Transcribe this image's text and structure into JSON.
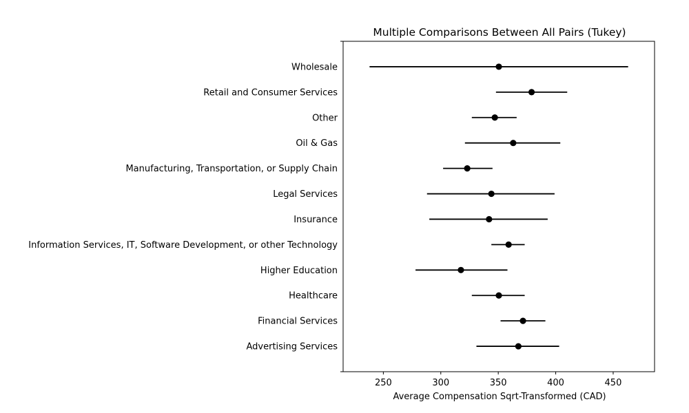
{
  "chart_data": {
    "type": "scatter",
    "title": "Multiple Comparisons Between All Pairs (Tukey)",
    "xlabel": "Average Compensation Sqrt-Transformed (CAD)",
    "ylabel": "",
    "xlim": [
      215,
      486
    ],
    "xticks": [
      250,
      300,
      350,
      400,
      450
    ],
    "grid": false,
    "categories": [
      "Wholesale",
      "Retail and Consumer Services",
      "Other",
      "Oil & Gas",
      "Manufacturing, Transportation, or Supply Chain",
      "Legal Services",
      "Insurance",
      "Information Services, IT, Software Development, or other Technology",
      "Higher Education",
      "Healthcare",
      "Financial Services",
      "Advertising Services"
    ],
    "means": [
      350.5,
      379,
      347,
      363,
      323,
      344,
      342,
      359,
      317.5,
      350.5,
      371.5,
      367.5
    ],
    "lower": [
      238,
      348,
      327,
      321,
      302,
      288,
      290,
      344,
      278,
      327,
      352,
      331
    ],
    "upper": [
      463,
      410,
      366,
      404,
      345,
      399,
      393,
      373,
      358,
      373,
      391,
      403
    ]
  }
}
